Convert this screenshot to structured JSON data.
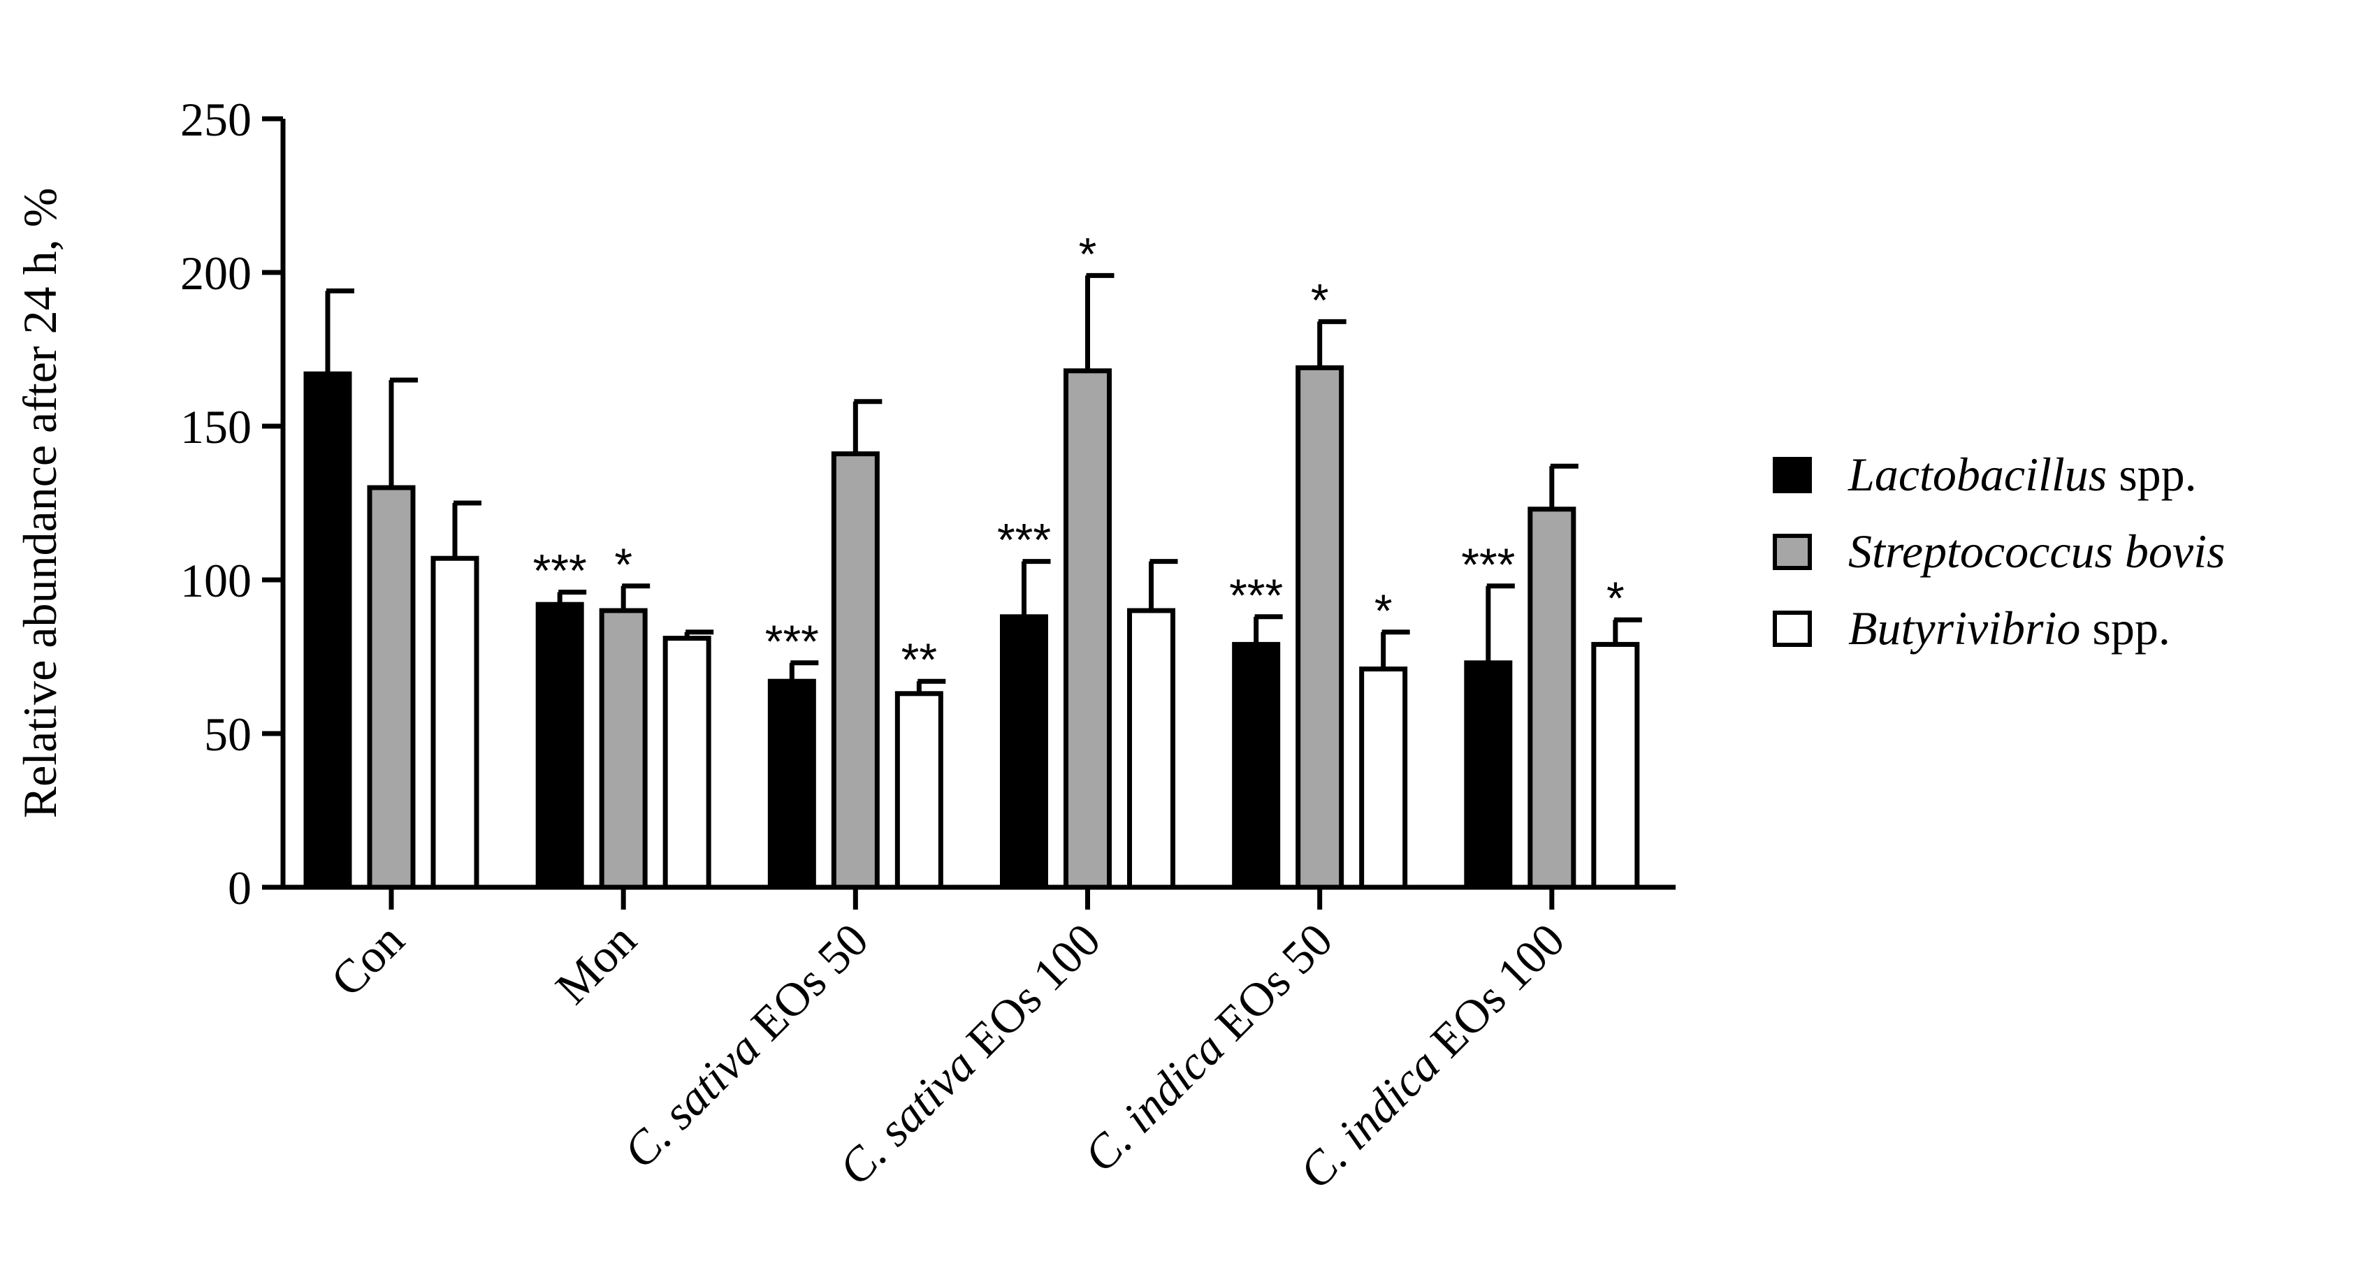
{
  "chart_data": {
    "type": "bar",
    "title": "",
    "xlabel": "",
    "ylabel": "Relative abundance after 24 h, %",
    "ylim": [
      0,
      250
    ],
    "yticks": [
      0,
      50,
      100,
      150,
      200,
      250
    ],
    "categories": [
      {
        "italic": "",
        "rest": "Con"
      },
      {
        "italic": "",
        "rest": "Mon"
      },
      {
        "italic": "C. sativa",
        "rest": " EOs 50"
      },
      {
        "italic": "C. sativa",
        "rest": " EOs 100"
      },
      {
        "italic": "C. indica",
        "rest": " EOs 50"
      },
      {
        "italic": "C. indica",
        "rest": " EOs 100"
      }
    ],
    "series": [
      {
        "name_italic": "Lactobacillus",
        "name_rest": " spp.",
        "fill": "#000000",
        "values": [
          167,
          92,
          67,
          88,
          79,
          73
        ],
        "errors": [
          27,
          4,
          6,
          18,
          9,
          25
        ],
        "significance": [
          "",
          "***",
          "***",
          "***",
          "***",
          "***"
        ]
      },
      {
        "name_italic": "Streptococcus bovis",
        "name_rest": "",
        "fill": "#a6a6a6",
        "values": [
          130,
          90,
          141,
          168,
          169,
          123
        ],
        "errors": [
          35,
          8,
          17,
          31,
          15,
          14
        ],
        "significance": [
          "",
          "*",
          "",
          "*",
          "*",
          ""
        ]
      },
      {
        "name_italic": "Butyrivibrio",
        "name_rest": " spp.",
        "fill": "#ffffff",
        "values": [
          107,
          81,
          63,
          90,
          71,
          79
        ],
        "errors": [
          18,
          2,
          4,
          16,
          12,
          8
        ],
        "significance": [
          "",
          "",
          "**",
          "",
          "*",
          "*"
        ]
      }
    ],
    "legend_position": "right"
  }
}
